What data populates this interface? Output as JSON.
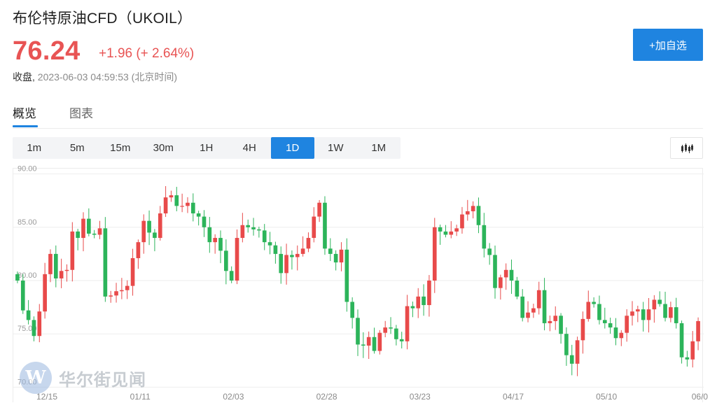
{
  "header": {
    "title": "布伦特原油CFD（UKOIL）",
    "price": "76.24",
    "change": "+1.96 (+ 2.64%)",
    "status_label": "收盘,",
    "timestamp": "2023-06-03 04:59:53 (北京时间)",
    "add_watch_label": "+加自选"
  },
  "colors": {
    "up": "#e84a4a",
    "down": "#2cb45a",
    "accent": "#1f84e0"
  },
  "tabs": [
    {
      "label": "概览",
      "active": true
    },
    {
      "label": "图表",
      "active": false
    }
  ],
  "periods": [
    {
      "label": "1m",
      "active": false
    },
    {
      "label": "5m",
      "active": false
    },
    {
      "label": "15m",
      "active": false
    },
    {
      "label": "30m",
      "active": false
    },
    {
      "label": "1H",
      "active": false
    },
    {
      "label": "4H",
      "active": false
    },
    {
      "label": "1D",
      "active": true
    },
    {
      "label": "1W",
      "active": false
    },
    {
      "label": "1M",
      "active": false
    }
  ],
  "chart_type_icon": "candlestick-icon",
  "watermark": {
    "text": "华尔街见闻",
    "logo_icon": "wallstreetcn-logo-icon",
    "logo_glyph": "W"
  },
  "chart_data": {
    "type": "candlestick",
    "ylim": [
      69.5,
      90.5
    ],
    "y_ticks": [
      "90.00",
      "85.00",
      "80.00",
      "75.00",
      "70.00"
    ],
    "x_ticks": [
      "12/15",
      "01/11",
      "02/03",
      "02/28",
      "03/23",
      "04/17",
      "05/10",
      "06/0"
    ],
    "grid": true,
    "closes": [
      80.0,
      77.2,
      76.3,
      74.8,
      77.1,
      80.6,
      82.5,
      80.2,
      80.9,
      81.0,
      84.6,
      84.0,
      85.8,
      84.4,
      84.3,
      84.9,
      78.5,
      78.6,
      79.0,
      79.1,
      79.5,
      82.1,
      83.6,
      85.6,
      84.5,
      84.0,
      86.3,
      87.8,
      88.0,
      87.0,
      87.0,
      87.3,
      86.3,
      86.0,
      85.0,
      83.6,
      84.0,
      82.8,
      80.9,
      80.0,
      84.0,
      85.2,
      85.0,
      84.8,
      84.7,
      83.6,
      83.3,
      82.5,
      80.7,
      82.4,
      82.2,
      82.5,
      83.0,
      84.0,
      86.0,
      87.3,
      83.0,
      82.5,
      81.7,
      82.9,
      78.0,
      76.5,
      74.0,
      73.9,
      74.7,
      73.4,
      75.1,
      75.6,
      75.5,
      74.5,
      74.3,
      77.6,
      77.4,
      78.5,
      77.7,
      80.0,
      85.0,
      84.6,
      84.3,
      84.6,
      84.9,
      86.2,
      86.5,
      87.0,
      85.2,
      83.0,
      82.4,
      79.3,
      80.3,
      81.0,
      80.0,
      78.5,
      76.5,
      77.0,
      77.4,
      79.1,
      76.0,
      76.2,
      76.7,
      75.0,
      73.0,
      72.2,
      74.4,
      76.4,
      78.0,
      77.8,
      76.3,
      76.0,
      75.6,
      74.6,
      75.1,
      76.7,
      77.1,
      77.3,
      76.3,
      77.3,
      78.2,
      77.8,
      76.5,
      77.5,
      76.0,
      72.8,
      72.6,
      74.3,
      76.2
    ]
  }
}
